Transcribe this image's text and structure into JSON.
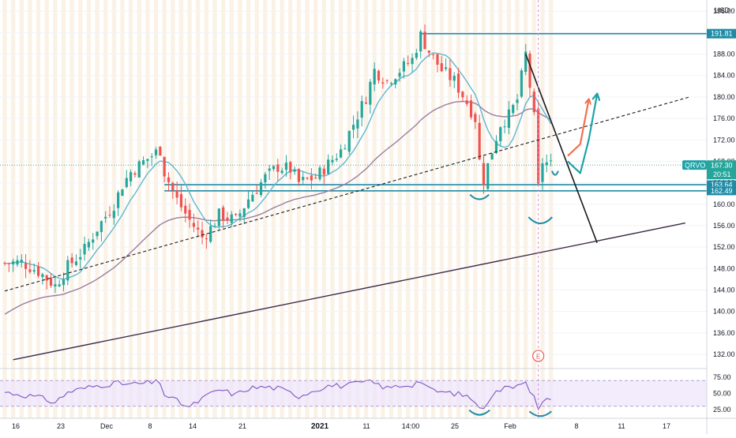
{
  "chart_data": [
    {
      "type": "candlestick",
      "symbol": "QRVO",
      "currency": "USD",
      "x_ticks": [
        "16",
        "23",
        "Dec",
        "8",
        "14",
        "21",
        "2021",
        "11",
        "14:00",
        "25",
        "Feb",
        "8",
        "11",
        "17"
      ],
      "y_ticks": [
        196.0,
        192.0,
        188.0,
        184.0,
        180.0,
        176.0,
        172.0,
        168.0,
        164.0,
        160.0,
        156.0,
        152.0,
        148.0,
        144.0,
        140.0,
        136.0,
        132.0
      ],
      "ylim": [
        129.5,
        197.5
      ],
      "last_price": 167.3,
      "last_price_label": "167.30",
      "countdown_label": "20:51",
      "level_labels": {
        "191.81": "191.81",
        "163.64": "163.64",
        "162.49": "162.49"
      },
      "horizontal_levels": [
        191.81,
        163.64,
        162.49
      ],
      "earnings_marker_label": "E",
      "moving_averages": [
        {
          "color": "#5fb7d4",
          "style": "short-term"
        },
        {
          "color": "#9c7ba0",
          "style": "long-term"
        }
      ],
      "price_path": [
        [
          0,
          149.0
        ],
        [
          4,
          149.2
        ],
        [
          8,
          147.5
        ],
        [
          12,
          144.8
        ],
        [
          15,
          148.4
        ],
        [
          19,
          151.5
        ],
        [
          22,
          155.5
        ],
        [
          26,
          160.0
        ],
        [
          28,
          163.6
        ],
        [
          30,
          166.0
        ],
        [
          34,
          168.5
        ],
        [
          37,
          170.2
        ],
        [
          38,
          166.0
        ],
        [
          41,
          160.8
        ],
        [
          44,
          157.0
        ],
        [
          47,
          153.8
        ],
        [
          49,
          155.5
        ],
        [
          51,
          158.0
        ],
        [
          55,
          157.0
        ],
        [
          58,
          161.0
        ],
        [
          62,
          165.0
        ],
        [
          65,
          167.0
        ],
        [
          68,
          166.5
        ],
        [
          70,
          164.0
        ],
        [
          74,
          165.0
        ],
        [
          77,
          167.5
        ],
        [
          80,
          170.0
        ],
        [
          83,
          175.0
        ],
        [
          86,
          180.0
        ],
        [
          88,
          185.0
        ],
        [
          91,
          183.0
        ],
        [
          94,
          185.0
        ],
        [
          97,
          187.0
        ],
        [
          99,
          191.5
        ],
        [
          101,
          188.5
        ],
        [
          104,
          185.0
        ],
        [
          107,
          183.0
        ],
        [
          110,
          179.0
        ],
        [
          112,
          176.0
        ],
        [
          113,
          168.0
        ],
        [
          114,
          164.5
        ],
        [
          116,
          170.0
        ],
        [
          118,
          175.0
        ],
        [
          120,
          176.5
        ],
        [
          122,
          179.5
        ],
        [
          124,
          188.0
        ],
        [
          125,
          182.0
        ],
        [
          126,
          176.0
        ],
        [
          127,
          163.0
        ],
        [
          128,
          168.0
        ],
        [
          130,
          167.3
        ]
      ],
      "annotations": [
        {
          "kind": "ascending trendline (solid)",
          "points": [
            [
              2,
              131.0
            ],
            [
              162,
              156.5
            ]
          ]
        },
        {
          "kind": "ascending trendline (dashed)",
          "points": [
            [
              0,
              143.8
            ],
            [
              163,
              180.0
            ]
          ]
        },
        {
          "kind": "descending trendline",
          "points": [
            [
              124,
              188.0
            ],
            [
              141,
              152.8
            ]
          ]
        },
        {
          "kind": "projected path (orange)",
          "points": [
            [
              134,
              169.0
            ],
            [
              137,
              171.2
            ],
            [
              139,
              179.5
            ]
          ]
        },
        {
          "kind": "projected path (teal)",
          "points": [
            [
              134,
              168.0
            ],
            [
              137,
              165.8
            ],
            [
              139,
              172.0
            ],
            [
              141,
              180.5
            ]
          ]
        }
      ]
    },
    {
      "type": "line",
      "indicator": "RSI",
      "y_ticks": [
        75.0,
        50.0,
        25.0
      ],
      "ylim": [
        15,
        85
      ],
      "overbought": 70,
      "oversold": 30,
      "values_path": [
        [
          0,
          52
        ],
        [
          4,
          48
        ],
        [
          8,
          44
        ],
        [
          12,
          36
        ],
        [
          15,
          52
        ],
        [
          19,
          58
        ],
        [
          22,
          62
        ],
        [
          26,
          66
        ],
        [
          30,
          64
        ],
        [
          34,
          66
        ],
        [
          37,
          68
        ],
        [
          38,
          48
        ],
        [
          41,
          38
        ],
        [
          44,
          28
        ],
        [
          47,
          42
        ],
        [
          51,
          56
        ],
        [
          55,
          48
        ],
        [
          58,
          58
        ],
        [
          62,
          60
        ],
        [
          65,
          58
        ],
        [
          70,
          46
        ],
        [
          74,
          56
        ],
        [
          77,
          62
        ],
        [
          80,
          62
        ],
        [
          83,
          64
        ],
        [
          86,
          68
        ],
        [
          88,
          66
        ],
        [
          91,
          58
        ],
        [
          94,
          62
        ],
        [
          97,
          64
        ],
        [
          99,
          70
        ],
        [
          101,
          56
        ],
        [
          104,
          52
        ],
        [
          107,
          50
        ],
        [
          110,
          46
        ],
        [
          112,
          38
        ],
        [
          113,
          24
        ],
        [
          114,
          30
        ],
        [
          116,
          48
        ],
        [
          118,
          56
        ],
        [
          120,
          60
        ],
        [
          122,
          64
        ],
        [
          124,
          72
        ],
        [
          125,
          54
        ],
        [
          126,
          44
        ],
        [
          127,
          24
        ],
        [
          128,
          34
        ],
        [
          130,
          44
        ]
      ]
    }
  ]
}
